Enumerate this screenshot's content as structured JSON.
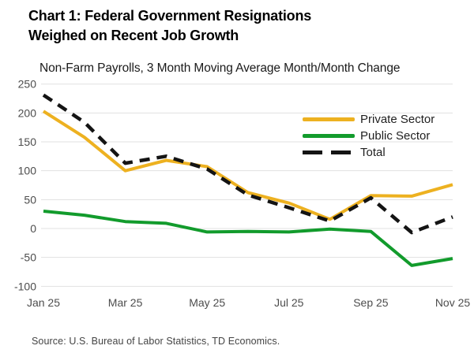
{
  "title": {
    "line1": "Chart 1: Federal Government Resignations",
    "line2": "Weighed on Recent Job Growth"
  },
  "subtitle": "Non-Farm Payrolls, 3 Month Moving Average Month/Month Change",
  "source": "Source: U.S. Bureau of Labor Statistics, TD Economics.",
  "chart_data": {
    "type": "line",
    "x": [
      "Jan 25",
      "Feb 25",
      "Mar 25",
      "Apr 25",
      "May 25",
      "Jun 25",
      "Jul 25",
      "Aug 25",
      "Sep 25",
      "Oct 25",
      "Nov 25"
    ],
    "x_tick_labels": [
      "Jan 25",
      "Mar 25",
      "May 25",
      "Jul 25",
      "Sep 25",
      "Nov 25"
    ],
    "x_tick_indices": [
      0,
      2,
      4,
      6,
      8,
      10
    ],
    "y_ticks": [
      250,
      200,
      150,
      100,
      50,
      0,
      -50,
      -100
    ],
    "ylim": [
      -100,
      250
    ],
    "grid": "horizontal",
    "legend_position": "inside-upper-right",
    "series": [
      {
        "name": "Private Sector",
        "color": "#EDB120",
        "style": "solid",
        "values": [
          203,
          158,
          100,
          118,
          107,
          62,
          44,
          16,
          57,
          56,
          76
        ]
      },
      {
        "name": "Public Sector",
        "color": "#129B2C",
        "style": "solid",
        "values": [
          30,
          23,
          12,
          9,
          -6,
          -5,
          -6,
          -1,
          -5,
          -64,
          -52
        ]
      },
      {
        "name": "Total",
        "color": "#141414",
        "style": "dashed",
        "values": [
          231,
          184,
          113,
          125,
          103,
          58,
          36,
          13,
          53,
          -7,
          20
        ]
      }
    ],
    "style": {
      "gridline_color": "#E1E1E1",
      "tick_label_color": "#4d4d4d",
      "tick_font_size": 14
    }
  }
}
